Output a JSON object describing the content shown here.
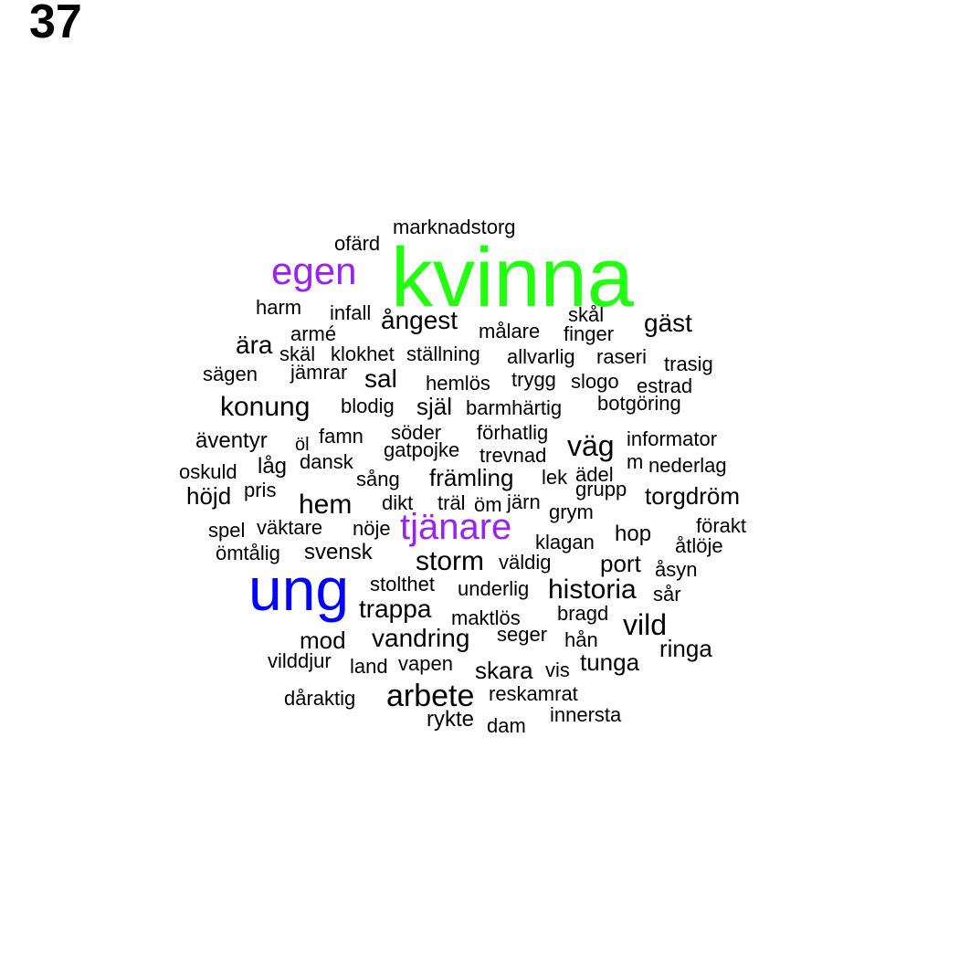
{
  "page_number": "37",
  "colors": {
    "big_green": "#22ff11",
    "purple": "#9922ee",
    "blue": "#0000ff",
    "default": "#000000"
  },
  "words": [
    {
      "text": "kvinna",
      "color": "#22ff11"
    },
    {
      "text": "ung",
      "color": "#0000ff"
    },
    {
      "text": "egen",
      "color": "#9922ee"
    },
    {
      "text": "tjänare",
      "color": "#9922ee"
    },
    {
      "text": "marknadstorg"
    },
    {
      "text": "ofärd"
    },
    {
      "text": "harm"
    },
    {
      "text": "infall"
    },
    {
      "text": "ångest"
    },
    {
      "text": "skål"
    },
    {
      "text": "gäst"
    },
    {
      "text": "armé"
    },
    {
      "text": "målare"
    },
    {
      "text": "finger"
    },
    {
      "text": "ära"
    },
    {
      "text": "skäl"
    },
    {
      "text": "klokhet"
    },
    {
      "text": "ställning"
    },
    {
      "text": "allvarlig"
    },
    {
      "text": "raseri"
    },
    {
      "text": "trasig"
    },
    {
      "text": "sägen"
    },
    {
      "text": "jämrar"
    },
    {
      "text": "sal"
    },
    {
      "text": "hemlös"
    },
    {
      "text": "trygg"
    },
    {
      "text": "slogo"
    },
    {
      "text": "estrad"
    },
    {
      "text": "konung"
    },
    {
      "text": "blodig"
    },
    {
      "text": "själ"
    },
    {
      "text": "barmhärtig"
    },
    {
      "text": "botgöring"
    },
    {
      "text": "äventyr"
    },
    {
      "text": "öl"
    },
    {
      "text": "famn"
    },
    {
      "text": "söder"
    },
    {
      "text": "förhatlig"
    },
    {
      "text": "väg"
    },
    {
      "text": "informator"
    },
    {
      "text": "gatpojke"
    },
    {
      "text": "trevnad"
    },
    {
      "text": "oskuld"
    },
    {
      "text": "låg"
    },
    {
      "text": "dansk"
    },
    {
      "text": "m"
    },
    {
      "text": "nederlag"
    },
    {
      "text": "sång"
    },
    {
      "text": "främling"
    },
    {
      "text": "lek"
    },
    {
      "text": "ädel"
    },
    {
      "text": "höjd"
    },
    {
      "text": "pris"
    },
    {
      "text": "grupp"
    },
    {
      "text": "torgdröm"
    },
    {
      "text": "hem"
    },
    {
      "text": "dikt"
    },
    {
      "text": "träl"
    },
    {
      "text": "öm"
    },
    {
      "text": "järn"
    },
    {
      "text": "grym"
    },
    {
      "text": "spel"
    },
    {
      "text": "väktare"
    },
    {
      "text": "nöje"
    },
    {
      "text": "förakt"
    },
    {
      "text": "klagan"
    },
    {
      "text": "hop"
    },
    {
      "text": "åtlöje"
    },
    {
      "text": "ömtålig"
    },
    {
      "text": "svensk"
    },
    {
      "text": "storm"
    },
    {
      "text": "väldig"
    },
    {
      "text": "port"
    },
    {
      "text": "åsyn"
    },
    {
      "text": "stolthet"
    },
    {
      "text": "underlig"
    },
    {
      "text": "historia"
    },
    {
      "text": "sår"
    },
    {
      "text": "trappa"
    },
    {
      "text": "maktlös"
    },
    {
      "text": "bragd"
    },
    {
      "text": "vild"
    },
    {
      "text": "mod"
    },
    {
      "text": "vandring"
    },
    {
      "text": "seger"
    },
    {
      "text": "hån"
    },
    {
      "text": "ringa"
    },
    {
      "text": "vilddjur"
    },
    {
      "text": "land"
    },
    {
      "text": "vapen"
    },
    {
      "text": "skara"
    },
    {
      "text": "vis"
    },
    {
      "text": "tunga"
    },
    {
      "text": "dåraktig"
    },
    {
      "text": "arbete"
    },
    {
      "text": "reskamrat"
    },
    {
      "text": "rykte"
    },
    {
      "text": "dam"
    },
    {
      "text": "innersta"
    }
  ]
}
